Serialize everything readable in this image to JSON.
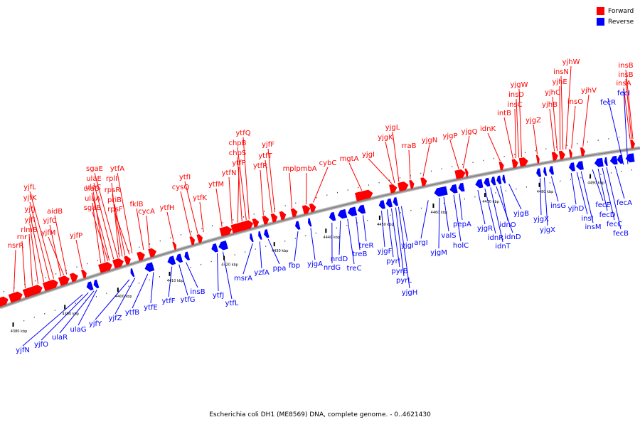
{
  "title": "Escherichia coli DH1 (ME8569) DNA, complete genome. - 0..4621430",
  "colors": {
    "forward": "#ff0000",
    "reverse": "#0000ff",
    "backbone": "#888888"
  },
  "legend": [
    {
      "key": "forward",
      "label": "Forward",
      "color": "#ff0000"
    },
    {
      "key": "reverse",
      "label": "Reverse",
      "color": "#0000ff"
    }
  ],
  "ticks": [
    "4380 kbp",
    "4390 kbp",
    "4400 kbp",
    "4410 kbp",
    "4420 kbp",
    "4430 kbp",
    "4440 kbp",
    "4450 kbp",
    "4460 kbp",
    "4470 kbp",
    "4480 kbp",
    "4490 kbp"
  ],
  "forward_genes": [
    "nsrR",
    "rnr",
    "rlmB",
    "yjfI",
    "yjfJ",
    "yjfK",
    "yjfL",
    "yjfC",
    "yjfM",
    "aidB",
    "yjfP",
    "ulaA",
    "ulaC",
    "sgaB",
    "ulaD",
    "ulaE",
    "sgaE",
    "rplI",
    "rpsR",
    "priB",
    "rpsF",
    "ytfA",
    "fklB",
    "cycA",
    "ytfH",
    "cysQ",
    "ytfI",
    "ytfK",
    "ytfM",
    "ytfN",
    "ytfP",
    "chpS",
    "chpB",
    "ytfQ",
    "ytfR",
    "ytfT",
    "yjfF",
    "mpl",
    "pmbA",
    "cybC",
    "mgtA",
    "yjgI",
    "yjgK",
    "yjgL",
    "rraB",
    "yjgN",
    "yjgP",
    "yjgQ",
    "idnK",
    "intB",
    "insC",
    "insD",
    "yjgW",
    "yjgZ",
    "yjhB",
    "yjhC",
    "yjhE",
    "insN",
    "yjhW",
    "insO",
    "yjhV",
    "insA",
    "insB",
    "insB"
  ],
  "reverse_genes": [
    "yjfN",
    "yjfO",
    "ulaR",
    "ulaG",
    "yjfY",
    "yjfZ",
    "ytfB",
    "ytfE",
    "ytfF",
    "ytfG",
    "insB",
    "ytfJ",
    "ytfL",
    "msrA",
    "yzfA",
    "ppa",
    "fbp",
    "yjgA",
    "nrdG",
    "nrdD",
    "treC",
    "treB",
    "treR",
    "yjgF",
    "pyrI",
    "pyrB",
    "pyrL",
    "yjgH",
    "yjgI",
    "argI",
    "yjgM",
    "valS",
    "holC",
    "pepA",
    "yjgR",
    "idnR",
    "idnT",
    "idnD",
    "idnO",
    "yjgB",
    "yjgX",
    "yjgX",
    "insG",
    "yjhD",
    "insI",
    "insM",
    "fecE",
    "fecD",
    "fecC",
    "fecB",
    "fecA",
    "fecR",
    "fecI"
  ]
}
